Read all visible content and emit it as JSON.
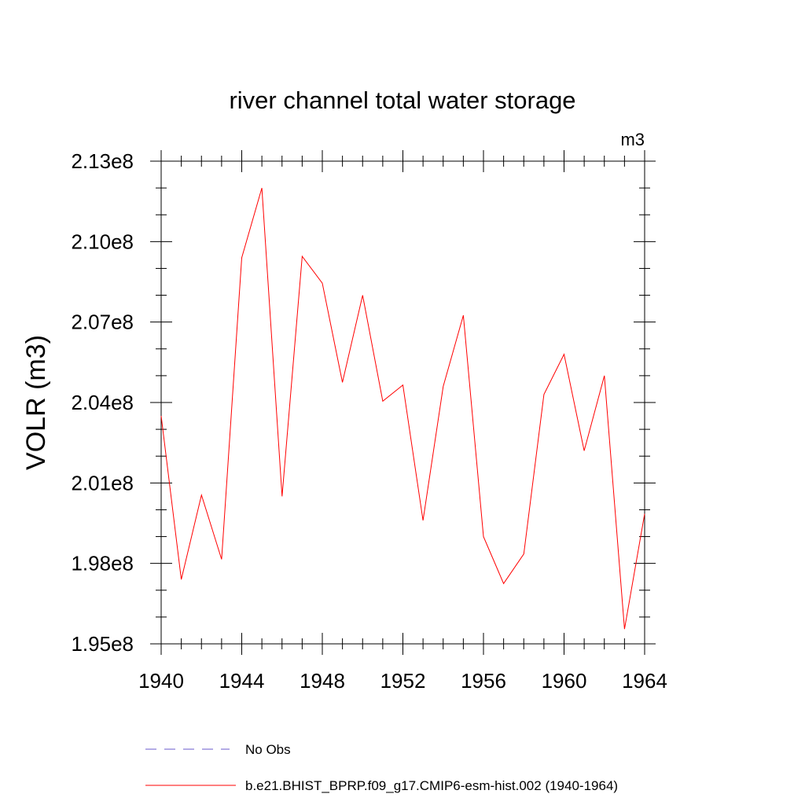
{
  "chart_data": {
    "type": "line",
    "title": "river channel total water storage",
    "units_label": "m3",
    "ylabel": "VOLR  (m3)",
    "xlabel": "",
    "xlim": [
      1940,
      1964
    ],
    "ylim": [
      195000000,
      213000000
    ],
    "x_ticks": [
      1940,
      1944,
      1948,
      1952,
      1956,
      1960,
      1964
    ],
    "x_tick_labels": [
      "1940",
      "1944",
      "1948",
      "1952",
      "1956",
      "1960",
      "1964"
    ],
    "y_ticks": [
      195000000,
      198000000,
      201000000,
      204000000,
      207000000,
      210000000,
      213000000
    ],
    "y_tick_labels": [
      "1.95e8",
      "1.98e8",
      "2.01e8",
      "2.04e8",
      "2.07e8",
      "2.10e8",
      "2.13e8"
    ],
    "series": [
      {
        "name": "b.e21.BHIST_BPRP.f09_g17.CMIP6-esm-hist.002 (1940-1964)",
        "color": "#ff0000",
        "style": "solid",
        "x": [
          1940,
          1941,
          1942,
          1943,
          1944,
          1945,
          1946,
          1947,
          1948,
          1949,
          1950,
          1951,
          1952,
          1953,
          1954,
          1955,
          1956,
          1957,
          1958,
          1959,
          1960,
          1961,
          1962,
          1963,
          1964
        ],
        "values": [
          203500000,
          197400000,
          200550000,
          198150000,
          209400000,
          212000000,
          200500000,
          209450000,
          208450000,
          204750000,
          208000000,
          204050000,
          204650000,
          199600000,
          204600000,
          207250000,
          199000000,
          197250000,
          198350000,
          204300000,
          205800000,
          202200000,
          205000000,
          195550000,
          199850000
        ]
      }
    ],
    "legend": [
      {
        "label": "No Obs",
        "color": "#6a5acd",
        "style": "dashed"
      },
      {
        "label": "b.e21.BHIST_BPRP.f09_g17.CMIP6-esm-hist.002 (1940-1964)",
        "color": "#ff0000",
        "style": "solid"
      }
    ]
  }
}
